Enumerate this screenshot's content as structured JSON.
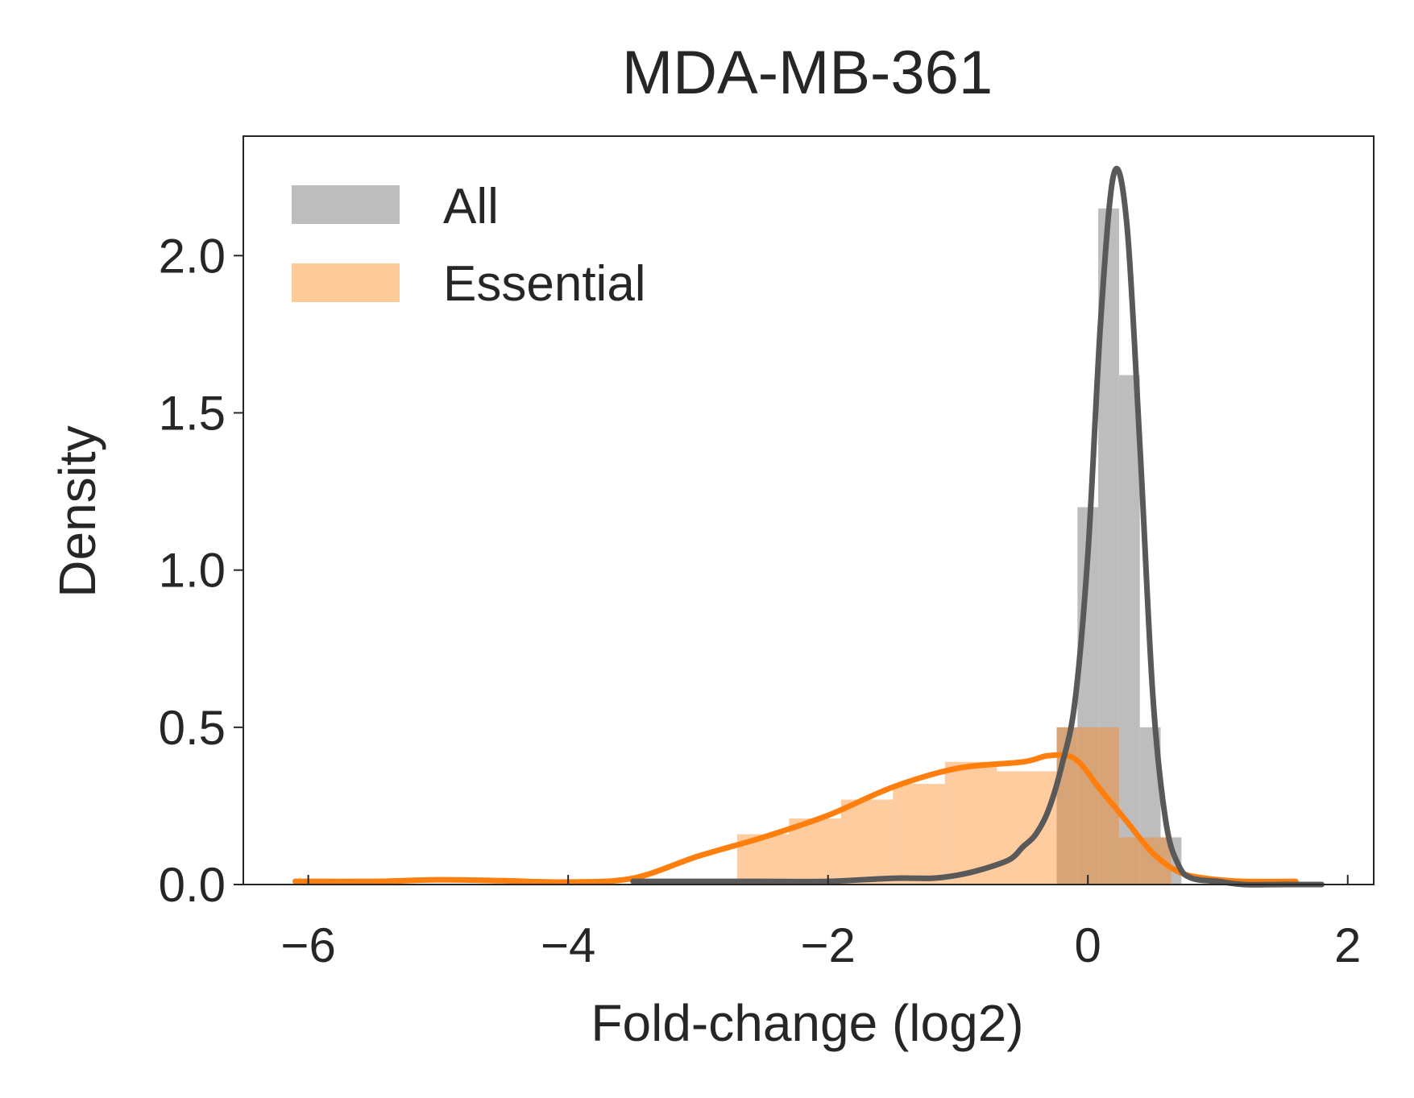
{
  "chart_data": {
    "type": "area",
    "title": "MDA-MB-361",
    "xlabel": "Fold-change (log2)",
    "ylabel": "Density",
    "xlim": [
      -6.5,
      2.2
    ],
    "ylim": [
      0,
      2.38
    ],
    "xticks": [
      -6,
      -4,
      -2,
      0,
      2
    ],
    "xtick_labels": [
      "−6",
      "−4",
      "−2",
      "0",
      "2"
    ],
    "yticks": [
      0.0,
      0.5,
      1.0,
      1.5,
      2.0
    ],
    "ytick_labels": [
      "0.0",
      "0.5",
      "1.0",
      "1.5",
      "2.0"
    ],
    "grid": false,
    "legend_position": "top-left",
    "colors": {
      "all_hist": "#bdbdbd",
      "all_line": "#595959",
      "essential_hist": "#ffcc99",
      "essential_line": "#ff7f0e",
      "overlap": "#d9a66f",
      "axis": "#262626"
    },
    "series": [
      {
        "name": "All",
        "kind": "histogram+kde",
        "hist": {
          "edges": [
            -0.24,
            -0.08,
            0.08,
            0.24,
            0.4,
            0.56,
            0.72
          ],
          "values": [
            0.5,
            1.2,
            2.15,
            1.62,
            0.5,
            0.15
          ]
        },
        "kde": {
          "x": [
            -3.5,
            -3.0,
            -2.5,
            -2.0,
            -1.5,
            -1.2,
            -1.0,
            -0.8,
            -0.6,
            -0.5,
            -0.4,
            -0.3,
            -0.2,
            -0.1,
            0.0,
            0.1,
            0.2,
            0.3,
            0.4,
            0.5,
            0.6,
            0.7,
            0.8,
            1.0,
            1.2,
            1.5,
            1.8
          ],
          "y": [
            0.01,
            0.01,
            0.01,
            0.01,
            0.02,
            0.02,
            0.03,
            0.05,
            0.08,
            0.12,
            0.16,
            0.24,
            0.38,
            0.58,
            1.05,
            1.8,
            2.26,
            2.1,
            1.4,
            0.6,
            0.2,
            0.06,
            0.02,
            0.01,
            0.0,
            0.0,
            0.0
          ]
        }
      },
      {
        "name": "Essential",
        "kind": "histogram+kde",
        "hist": {
          "edges": [
            -2.7,
            -2.3,
            -1.9,
            -1.5,
            -1.1,
            -0.7,
            -0.24,
            0.24,
            0.64
          ],
          "values": [
            0.16,
            0.21,
            0.27,
            0.32,
            0.39,
            0.36,
            0.5,
            0.15
          ]
        },
        "kde": {
          "x": [
            -6.1,
            -5.5,
            -5.0,
            -4.5,
            -4.0,
            -3.5,
            -3.0,
            -2.5,
            -2.0,
            -1.5,
            -1.0,
            -0.5,
            -0.3,
            -0.1,
            0.1,
            0.3,
            0.5,
            0.7,
            0.9,
            1.2,
            1.6
          ],
          "y": [
            0.01,
            0.01,
            0.015,
            0.012,
            0.008,
            0.02,
            0.09,
            0.15,
            0.22,
            0.31,
            0.37,
            0.39,
            0.41,
            0.4,
            0.3,
            0.2,
            0.1,
            0.04,
            0.02,
            0.01,
            0.01
          ]
        }
      }
    ]
  }
}
